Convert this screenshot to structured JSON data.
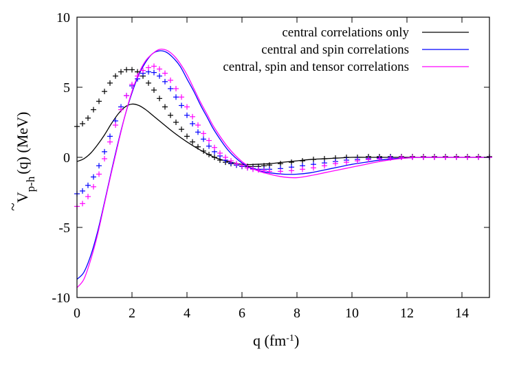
{
  "chart_data": {
    "type": "line",
    "xlabel": "q  (fm",
    "xlabel_sup": "-1",
    "xlabel_close": ")",
    "ylabel_main": "V",
    "ylabel_tilde": "~",
    "ylabel_sub": "p-h",
    "ylabel_rest": "(q)  (MeV)",
    "xlim": [
      0,
      15
    ],
    "ylim": [
      -10,
      10
    ],
    "xticks": [
      0,
      2,
      4,
      6,
      8,
      10,
      12,
      14
    ],
    "yticks": [
      -10,
      -5,
      0,
      5,
      10
    ],
    "legend_position": "top-right",
    "series": [
      {
        "name": "central correlations only",
        "color": "#000000",
        "style": "line",
        "x": [
          0,
          0.25,
          0.5,
          0.75,
          1.0,
          1.25,
          1.5,
          1.75,
          2.0,
          2.25,
          2.5,
          2.75,
          3.0,
          3.5,
          4.0,
          4.5,
          5.0,
          5.5,
          6.0,
          6.5,
          7.0,
          7.5,
          8.0,
          8.5,
          9.0,
          9.5,
          10.0,
          10.5,
          11.0,
          11.5,
          12.0,
          12.5,
          13.0,
          13.5,
          14.0,
          14.5,
          15.0
        ],
        "y": [
          -0.3,
          -0.1,
          0.3,
          0.9,
          1.6,
          2.4,
          3.1,
          3.6,
          3.8,
          3.7,
          3.4,
          3.0,
          2.6,
          1.8,
          1.1,
          0.5,
          0.0,
          -0.3,
          -0.5,
          -0.5,
          -0.45,
          -0.35,
          -0.25,
          -0.15,
          -0.1,
          -0.05,
          0.0,
          0.0,
          0.0,
          0.0,
          0.0,
          0.0,
          0.0,
          0.0,
          0.0,
          0.0,
          0.0
        ]
      },
      {
        "name": "central and spin correlations",
        "color": "#0000ff",
        "style": "line",
        "x": [
          0,
          0.25,
          0.5,
          0.75,
          1.0,
          1.25,
          1.5,
          1.75,
          2.0,
          2.25,
          2.5,
          2.75,
          3.0,
          3.25,
          3.5,
          3.75,
          4.0,
          4.25,
          4.5,
          4.75,
          5.0,
          5.5,
          6.0,
          6.5,
          7.0,
          7.5,
          8.0,
          8.5,
          9.0,
          9.5,
          10.0,
          10.5,
          11.0,
          11.5,
          12.0,
          12.5,
          13.0,
          14.0,
          15.0
        ],
        "y": [
          -8.7,
          -8.2,
          -7.0,
          -5.3,
          -3.2,
          -1.0,
          1.1,
          3.0,
          4.6,
          5.9,
          6.8,
          7.4,
          7.6,
          7.5,
          7.1,
          6.5,
          5.6,
          4.7,
          3.7,
          2.8,
          1.9,
          0.5,
          -0.4,
          -0.9,
          -1.1,
          -1.2,
          -1.2,
          -1.1,
          -0.9,
          -0.7,
          -0.5,
          -0.35,
          -0.2,
          -0.1,
          -0.05,
          0.0,
          0.0,
          0.0,
          0.0
        ]
      },
      {
        "name": "central, spin and tensor correlations",
        "color": "#ff00ff",
        "style": "line",
        "x": [
          0,
          0.25,
          0.5,
          0.75,
          1.0,
          1.25,
          1.5,
          1.75,
          2.0,
          2.25,
          2.5,
          2.75,
          3.0,
          3.25,
          3.5,
          3.75,
          4.0,
          4.25,
          4.5,
          4.75,
          5.0,
          5.5,
          6.0,
          6.5,
          7.0,
          7.5,
          8.0,
          8.5,
          9.0,
          9.5,
          10.0,
          10.5,
          11.0,
          11.5,
          12.0,
          12.5,
          13.0,
          14.0,
          15.0
        ],
        "y": [
          -9.3,
          -8.7,
          -7.3,
          -5.5,
          -3.3,
          -1.1,
          1.0,
          3.0,
          4.7,
          6.0,
          6.9,
          7.4,
          7.7,
          7.65,
          7.3,
          6.7,
          5.9,
          4.9,
          3.9,
          3.0,
          2.1,
          0.7,
          -0.3,
          -0.9,
          -1.2,
          -1.4,
          -1.45,
          -1.3,
          -1.1,
          -0.9,
          -0.7,
          -0.5,
          -0.3,
          -0.15,
          -0.05,
          0.0,
          0.0,
          0.0,
          0.0
        ]
      },
      {
        "name": "",
        "color": "#000000",
        "style": "markers",
        "x": [
          0,
          0.2,
          0.4,
          0.6,
          0.8,
          1.0,
          1.2,
          1.4,
          1.6,
          1.8,
          2.0,
          2.2,
          2.4,
          2.6,
          2.8,
          3.0,
          3.2,
          3.4,
          3.6,
          3.8,
          4.0,
          4.2,
          4.4,
          4.6,
          4.8,
          5.0,
          5.2,
          5.4,
          5.6,
          5.8,
          6.0,
          6.2,
          6.4,
          6.6,
          6.8,
          7.0,
          7.4,
          7.8,
          8.2,
          8.6,
          9.0,
          9.4,
          9.8,
          10.2,
          10.6,
          11.0,
          11.4,
          11.8,
          12.2,
          12.6,
          13.0,
          13.4,
          13.8,
          14.2,
          14.6,
          15.0
        ],
        "y": [
          2.2,
          2.4,
          2.8,
          3.4,
          4.0,
          4.7,
          5.3,
          5.8,
          6.1,
          6.25,
          6.25,
          6.1,
          5.8,
          5.3,
          4.8,
          4.2,
          3.6,
          3.0,
          2.5,
          2.0,
          1.5,
          1.1,
          0.75,
          0.45,
          0.2,
          0.0,
          -0.2,
          -0.35,
          -0.45,
          -0.55,
          -0.6,
          -0.65,
          -0.65,
          -0.65,
          -0.6,
          -0.55,
          -0.45,
          -0.35,
          -0.25,
          -0.15,
          -0.1,
          -0.05,
          0.0,
          0.0,
          0.05,
          0.05,
          0.05,
          0.05,
          0.05,
          0.05,
          0.05,
          0.05,
          0.05,
          0.05,
          0.05,
          0.05
        ]
      },
      {
        "name": "",
        "color": "#0000ff",
        "style": "markers",
        "x": [
          0,
          0.2,
          0.4,
          0.6,
          0.8,
          1.0,
          1.2,
          1.4,
          1.6,
          1.8,
          2.0,
          2.2,
          2.4,
          2.6,
          2.8,
          3.0,
          3.2,
          3.4,
          3.6,
          3.8,
          4.0,
          4.2,
          4.4,
          4.6,
          4.8,
          5.0,
          5.2,
          5.4,
          5.6,
          5.8,
          6.0,
          6.2,
          6.4,
          6.6,
          6.8,
          7.0,
          7.4,
          7.8,
          8.2,
          8.6,
          9.0,
          9.4,
          9.8,
          10.2,
          10.6,
          11.0,
          11.4,
          11.8,
          12.2,
          12.6,
          13.0,
          13.4,
          13.8,
          14.2,
          14.6,
          15.0
        ],
        "y": [
          -2.6,
          -2.4,
          -2.0,
          -1.4,
          -0.6,
          0.4,
          1.5,
          2.6,
          3.6,
          4.4,
          5.1,
          5.6,
          6.0,
          6.1,
          6.05,
          5.8,
          5.4,
          4.9,
          4.3,
          3.7,
          3.0,
          2.4,
          1.8,
          1.3,
          0.8,
          0.4,
          0.1,
          -0.2,
          -0.4,
          -0.55,
          -0.65,
          -0.75,
          -0.8,
          -0.85,
          -0.85,
          -0.85,
          -0.8,
          -0.7,
          -0.6,
          -0.5,
          -0.4,
          -0.3,
          -0.2,
          -0.15,
          -0.1,
          -0.05,
          0.0,
          0.0,
          0.0,
          0.0,
          0.0,
          0.0,
          0.0,
          0.0,
          0.0,
          0.0
        ]
      },
      {
        "name": "",
        "color": "#ff00ff",
        "style": "markers",
        "x": [
          0,
          0.2,
          0.4,
          0.6,
          0.8,
          1.0,
          1.2,
          1.4,
          1.6,
          1.8,
          2.0,
          2.2,
          2.4,
          2.6,
          2.8,
          3.0,
          3.2,
          3.4,
          3.6,
          3.8,
          4.0,
          4.2,
          4.4,
          4.6,
          4.8,
          5.0,
          5.2,
          5.4,
          5.6,
          5.8,
          6.0,
          6.2,
          6.4,
          6.6,
          6.8,
          7.0,
          7.4,
          7.8,
          8.2,
          8.6,
          9.0,
          9.4,
          9.8,
          10.2,
          10.6,
          11.0,
          11.4,
          11.8,
          12.2,
          12.6,
          13.0,
          13.4,
          13.8,
          14.2,
          14.6,
          15.0
        ],
        "y": [
          -3.5,
          -3.3,
          -2.8,
          -2.1,
          -1.2,
          -0.1,
          1.1,
          2.3,
          3.4,
          4.4,
          5.2,
          5.8,
          6.2,
          6.4,
          6.5,
          6.3,
          6.0,
          5.5,
          4.9,
          4.3,
          3.6,
          2.9,
          2.3,
          1.7,
          1.2,
          0.7,
          0.3,
          0.0,
          -0.25,
          -0.45,
          -0.6,
          -0.75,
          -0.85,
          -0.9,
          -0.95,
          -1.0,
          -1.0,
          -0.95,
          -0.85,
          -0.75,
          -0.6,
          -0.45,
          -0.35,
          -0.25,
          -0.15,
          -0.1,
          -0.05,
          0.0,
          0.0,
          0.0,
          0.0,
          0.0,
          0.0,
          0.0,
          0.0,
          0.0
        ]
      }
    ]
  }
}
